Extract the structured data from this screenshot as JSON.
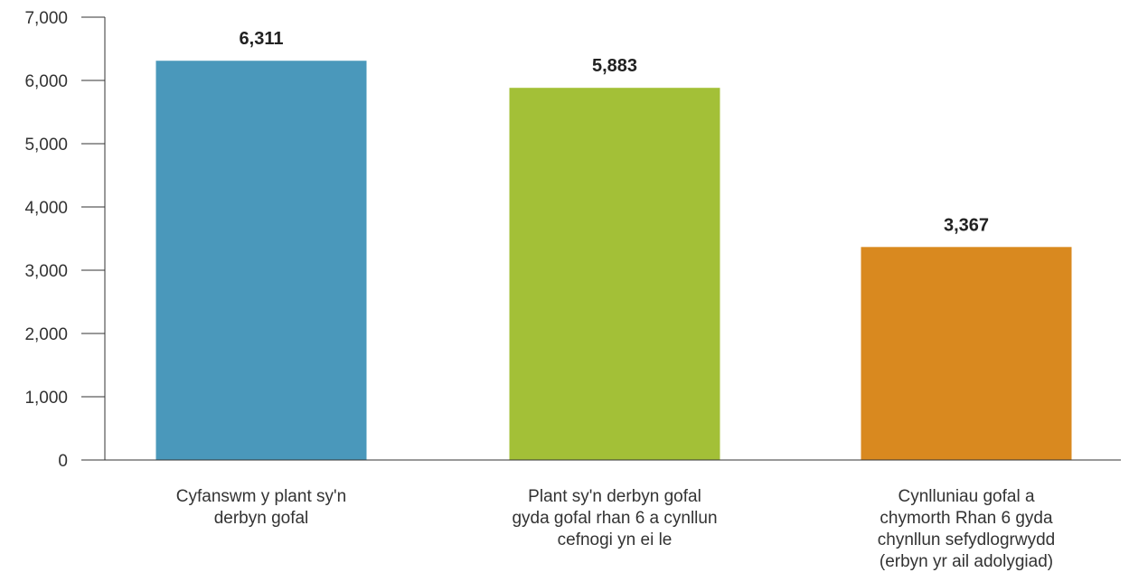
{
  "chart_data": {
    "type": "bar",
    "categories": [
      [
        "Cyfanswm y plant sy'n",
        "derbyn gofal"
      ],
      [
        "Plant sy'n derbyn gofal",
        "gyda gofal rhan 6 a cynllun",
        "cefnogi yn ei le"
      ],
      [
        "Cynlluniau gofal a",
        "chymorth Rhan 6 gyda",
        "chynllun sefydlogrwydd",
        "(erbyn yr ail adolygiad)"
      ]
    ],
    "values": [
      6311,
      5883,
      3367
    ],
    "value_labels": [
      "6,311",
      "5,883",
      "3,367"
    ],
    "colors": [
      "#4a98bb",
      "#a3c037",
      "#d9891f"
    ],
    "ylim": [
      0,
      7000
    ],
    "yticks": [
      0,
      1000,
      2000,
      3000,
      4000,
      5000,
      6000,
      7000
    ],
    "ytick_labels": [
      "0",
      "1,000",
      "2,000",
      "3,000",
      "4,000",
      "5,000",
      "6,000",
      "7,000"
    ],
    "grid": false,
    "legend": "none",
    "title": "",
    "xlabel": "",
    "ylabel": ""
  }
}
